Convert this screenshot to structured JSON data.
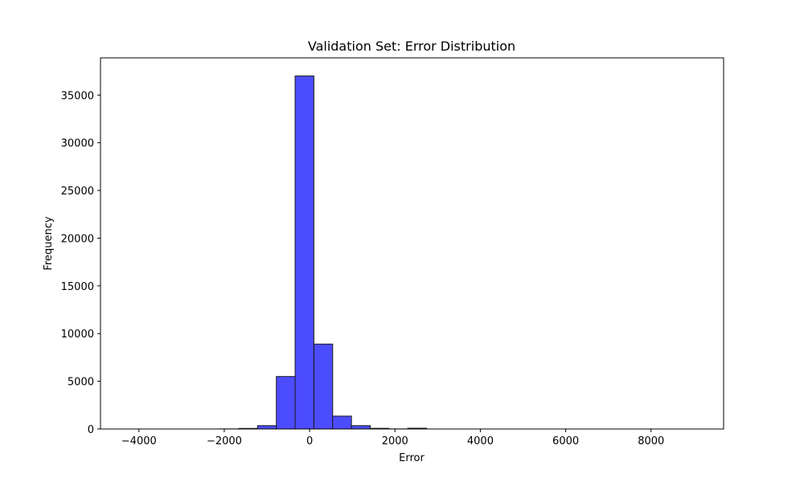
{
  "chart_data": {
    "type": "bar",
    "title": "Validation Set: Error Distribution",
    "xlabel": "Error",
    "ylabel": "Frequency",
    "xlim": [
      -4900,
      9700
    ],
    "ylim": [
      0,
      38900
    ],
    "x_ticks": [
      -4000,
      -2000,
      0,
      2000,
      4000,
      6000,
      8000
    ],
    "x_tick_labels": [
      "−4000",
      "−2000",
      "0",
      "2000",
      "4000",
      "6000",
      "8000"
    ],
    "y_ticks": [
      0,
      5000,
      10000,
      15000,
      20000,
      25000,
      30000,
      35000
    ],
    "y_tick_labels": [
      "0",
      "5000",
      "10000",
      "15000",
      "20000",
      "25000",
      "30000",
      "35000"
    ],
    "bin_edges": [
      -4300,
      -3860,
      -3420,
      -2980,
      -2540,
      -2100,
      -1660,
      -1220,
      -780,
      -340,
      100,
      540,
      980,
      1420,
      1860,
      2300,
      2740,
      3180,
      3620,
      4060,
      4500,
      4940,
      5380,
      5820,
      6260,
      6700,
      7140,
      7580,
      8020,
      8460,
      8900
    ],
    "values": [
      0,
      0,
      0,
      0,
      0,
      10,
      60,
      350,
      5500,
      37000,
      8900,
      1350,
      350,
      70,
      10,
      80,
      0,
      0,
      0,
      0,
      0,
      0,
      0,
      0,
      0,
      0,
      0,
      0,
      0,
      0
    ],
    "bar_color": "#4c4cff",
    "edge_color": "#1a1a1a",
    "grid": false,
    "legend": false
  }
}
